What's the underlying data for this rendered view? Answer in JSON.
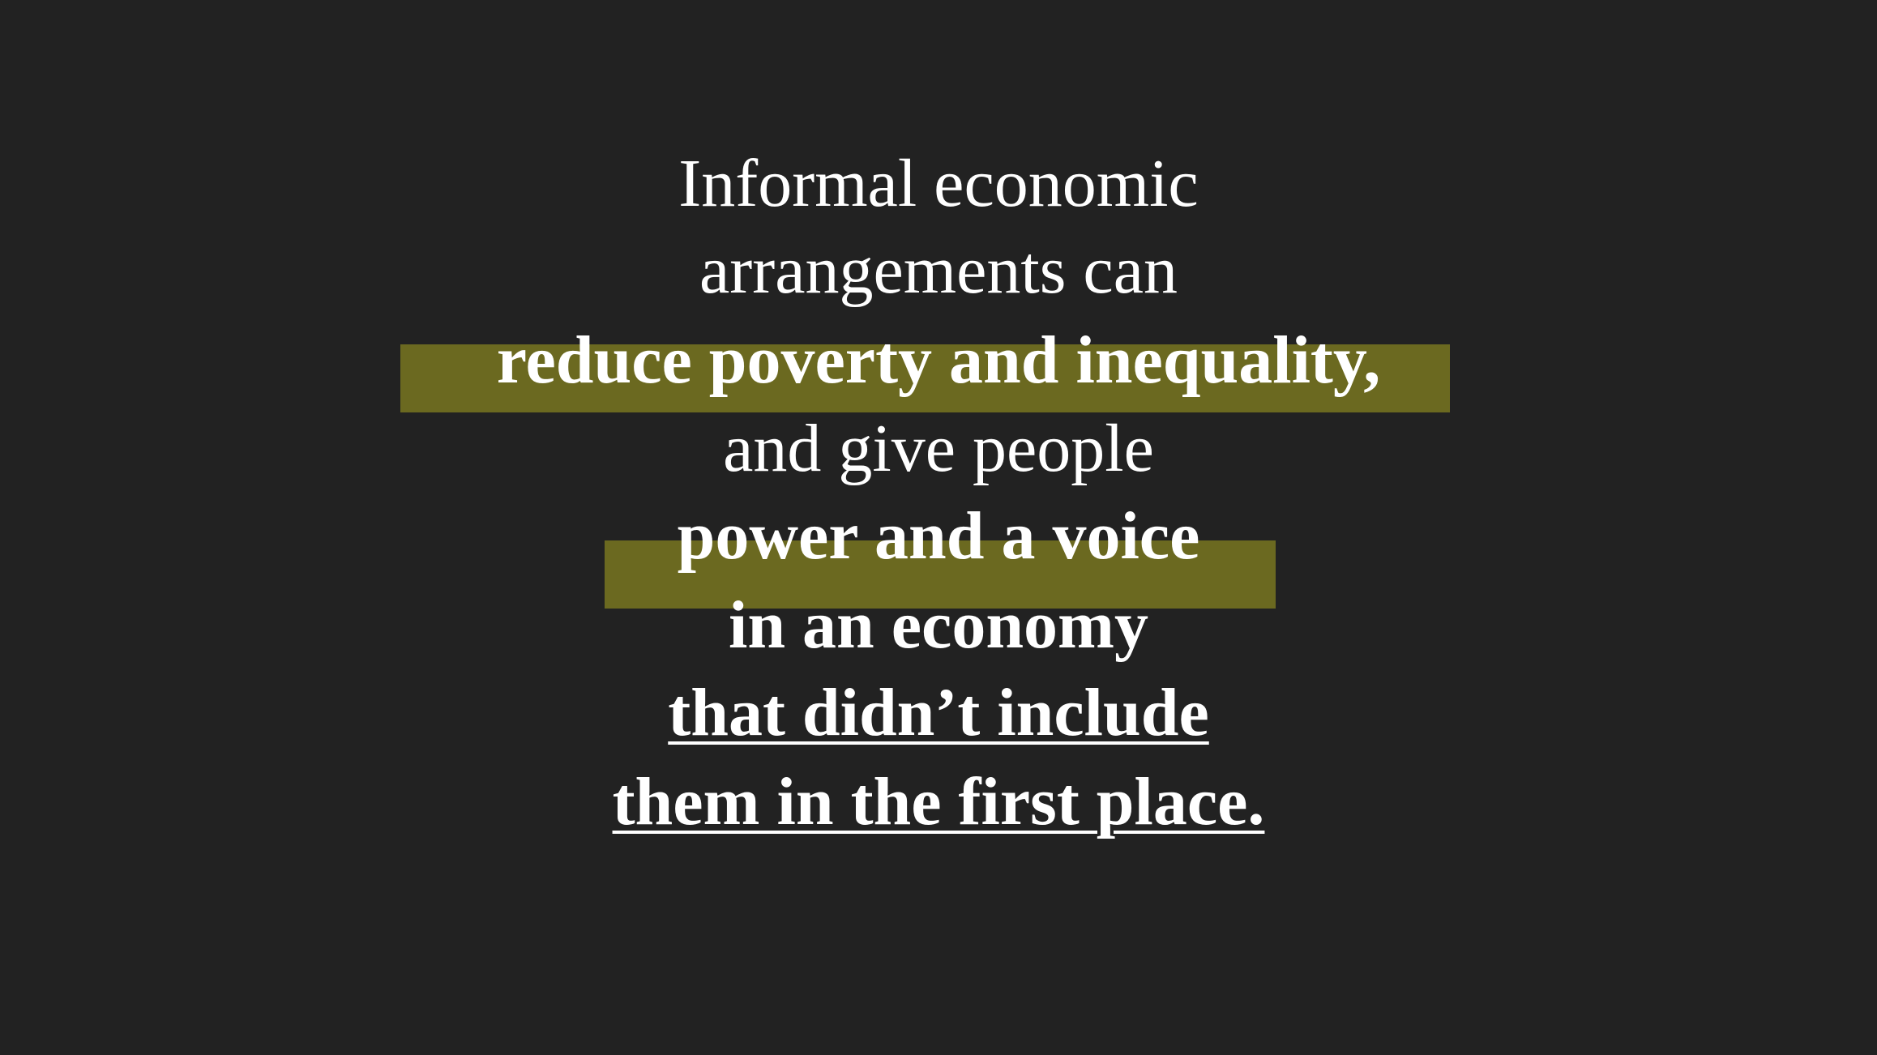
{
  "slide": {
    "lines": [
      "Informal economic",
      "arrangements can",
      "reduce poverty and inequality,",
      "and give people",
      "power and a voice",
      "in an economy",
      "that didn’t include",
      "them in the first place."
    ],
    "colors": {
      "background": "#222222",
      "text": "#ffffff",
      "highlight": "#6b6920"
    }
  }
}
